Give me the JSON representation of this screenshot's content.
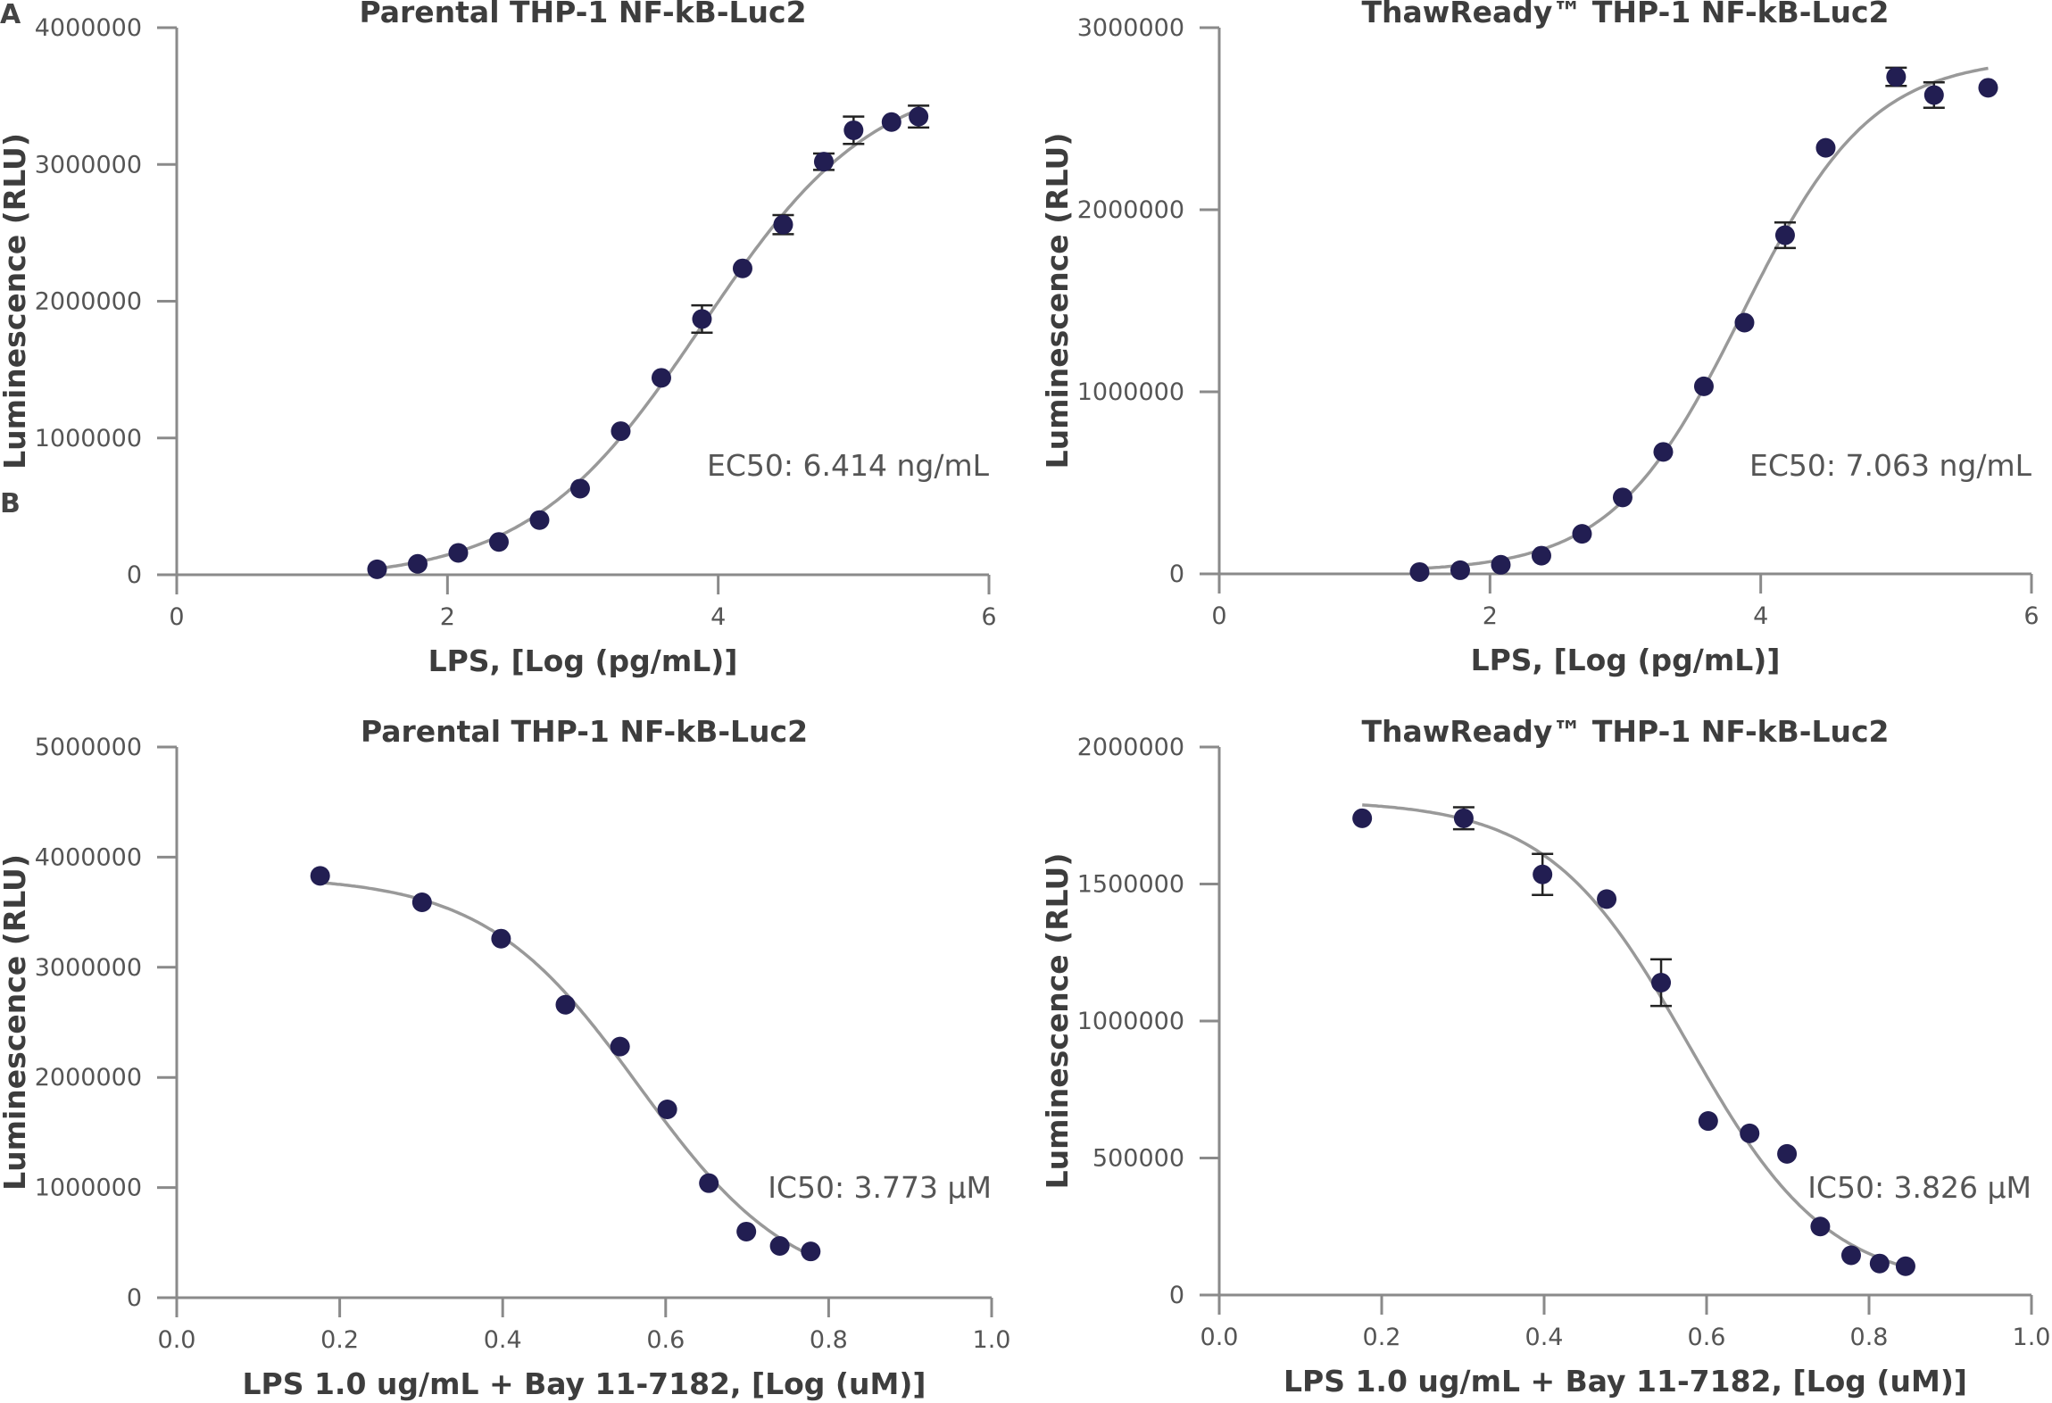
{
  "panel_labels": [
    "A",
    "B"
  ],
  "colors": {
    "point": "#221e52",
    "fit": "#999999",
    "axis": "#8a8a8a",
    "errorbar": "#222222"
  },
  "chart_data": [
    {
      "panel": "A",
      "type": "scatter",
      "title": "Parental THP-1 NF-kB-Luc2",
      "xlabel": "LPS, [Log (pg/mL)]",
      "ylabel": "Luminescence (RLU)",
      "xlim": [
        0,
        6
      ],
      "ylim": [
        0,
        4000000
      ],
      "xticks": [
        "0",
        "2",
        "4",
        "6"
      ],
      "yticks": [
        "0",
        "1000000",
        "2000000",
        "3000000",
        "4000000"
      ],
      "annotation": "EC50: 6.414 ng/mL",
      "fit": "sigmoid-increasing",
      "series": [
        {
          "name": "Parental THP-1 NF-kB-Luc2",
          "x": [
            1.48,
            1.78,
            2.08,
            2.38,
            2.68,
            2.98,
            3.28,
            3.58,
            3.88,
            4.18,
            4.48,
            4.78,
            5.0,
            5.28,
            5.48
          ],
          "y": [
            40000,
            80000,
            160000,
            240000,
            400000,
            630000,
            1050000,
            1440000,
            1870000,
            2240000,
            2560000,
            3020000,
            3250000,
            3310000,
            3350000
          ],
          "err": [
            0,
            0,
            0,
            0,
            0,
            0,
            0,
            0,
            100000,
            0,
            70000,
            60000,
            100000,
            0,
            80000
          ]
        }
      ]
    },
    {
      "panel": "",
      "type": "scatter",
      "title": "ThawReady™ THP-1 NF-kB-Luc2",
      "xlabel": "LPS, [Log (pg/mL)]",
      "ylabel": "Luminescence (RLU)",
      "xlim": [
        0,
        6
      ],
      "ylim": [
        0,
        3000000
      ],
      "xticks": [
        "0",
        "2",
        "4",
        "6"
      ],
      "yticks": [
        "0",
        "1000000",
        "2000000",
        "3000000"
      ],
      "annotation": "EC50: 7.063 ng/mL",
      "fit": "sigmoid-increasing",
      "series": [
        {
          "name": "ThawReady™ THP-1 NF-kB-Luc2",
          "x": [
            1.48,
            1.78,
            2.08,
            2.38,
            2.68,
            2.98,
            3.28,
            3.58,
            3.88,
            4.18,
            4.48,
            5.0,
            5.28,
            5.68
          ],
          "y": [
            10000,
            20000,
            50000,
            100000,
            220000,
            420000,
            670000,
            1030000,
            1380000,
            1860000,
            2340000,
            2730000,
            2630000,
            2670000
          ],
          "err": [
            0,
            0,
            0,
            0,
            0,
            0,
            0,
            0,
            0,
            70000,
            0,
            50000,
            70000,
            0
          ]
        }
      ]
    },
    {
      "panel": "B",
      "type": "scatter",
      "title": "Parental THP-1 NF-kB-Luc2",
      "xlabel": "LPS 1.0 ug/mL + Bay 11-7182, [Log (uM)]",
      "ylabel": "Luminescence (RLU)",
      "xlim": [
        0.0,
        1.0
      ],
      "ylim": [
        0,
        5000000
      ],
      "xticks": [
        "0.0",
        "0.2",
        "0.4",
        "0.6",
        "0.8",
        "1.0"
      ],
      "yticks": [
        "0",
        "1000000",
        "2000000",
        "3000000",
        "4000000",
        "5000000"
      ],
      "annotation": "IC50: 3.773 µM",
      "fit": "sigmoid-decreasing",
      "series": [
        {
          "name": "Parental THP-1 NF-kB-Luc2",
          "x": [
            0.176,
            0.301,
            0.398,
            0.477,
            0.544,
            0.602,
            0.653,
            0.699,
            0.74,
            0.778
          ],
          "y": [
            3830000,
            3590000,
            3260000,
            2660000,
            2280000,
            1710000,
            1040000,
            600000,
            470000,
            420000
          ],
          "err": [
            0,
            0,
            0,
            0,
            0,
            0,
            0,
            0,
            0,
            0
          ]
        }
      ]
    },
    {
      "panel": "",
      "type": "scatter",
      "title": "ThawReady™ THP-1 NF-kB-Luc2",
      "xlabel": "LPS 1.0 ug/mL + Bay 11-7182, [Log (uM)]",
      "ylabel": "Luminescence (RLU)",
      "xlim": [
        0.0,
        1.0
      ],
      "ylim": [
        0,
        2000000
      ],
      "xticks": [
        "0.0",
        "0.2",
        "0.4",
        "0.6",
        "0.8",
        "1.0"
      ],
      "yticks": [
        "0",
        "500000",
        "1000000",
        "1500000",
        "2000000"
      ],
      "annotation": "IC50: 3.826 µM",
      "fit": "sigmoid-decreasing",
      "series": [
        {
          "name": "ThawReady™ THP-1 NF-kB-Luc2",
          "x": [
            0.176,
            0.301,
            0.398,
            0.477,
            0.544,
            0.602,
            0.653,
            0.699,
            0.74,
            0.778,
            0.813,
            0.845
          ],
          "y": [
            1740000,
            1740000,
            1535000,
            1445000,
            1140000,
            635000,
            590000,
            515000,
            250000,
            145000,
            115000,
            105000
          ],
          "err": [
            0,
            40000,
            75000,
            0,
            85000,
            0,
            0,
            0,
            0,
            0,
            0,
            0
          ]
        }
      ]
    }
  ]
}
